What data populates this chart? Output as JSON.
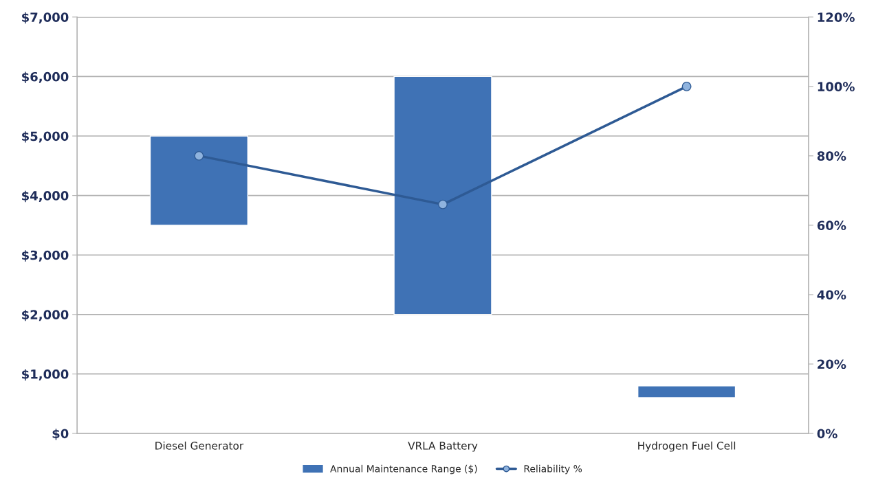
{
  "chart_data": {
    "type": "bar",
    "categories": [
      "Diesel Generator",
      "VRLA Battery",
      "Hydrogen Fuel Cell"
    ],
    "series": [
      {
        "name": "Annual Maintenance Range ($)",
        "color": "#3f72b5",
        "values": [
          1500,
          4000,
          200
        ],
        "base": [
          3500,
          2000,
          600
        ]
      },
      {
        "name": "Reliability %",
        "type": "line",
        "axis": "y2",
        "color": "#2e5a94",
        "marker": "circle",
        "values": [
          80,
          66,
          100
        ]
      }
    ],
    "ylim": [
      0,
      7000
    ],
    "yticks": [
      {
        "value": 0,
        "label": "$0"
      },
      {
        "value": 1000,
        "label": "$1,000"
      },
      {
        "value": 2000,
        "label": "$2,000"
      },
      {
        "value": 3000,
        "label": "$3,000"
      },
      {
        "value": 4000,
        "label": "$4,000"
      },
      {
        "value": 5000,
        "label": "$5,000"
      },
      {
        "value": 6000,
        "label": "$6,000"
      },
      {
        "value": 7000,
        "label": "$7,000"
      }
    ],
    "y2lim": [
      0,
      120
    ],
    "y2ticks": [
      {
        "value": 0,
        "label": "0%"
      },
      {
        "value": 20,
        "label": "20%"
      },
      {
        "value": 40,
        "label": "40%"
      },
      {
        "value": 60,
        "label": "60%"
      },
      {
        "value": 80,
        "label": "80%"
      },
      {
        "value": 100,
        "label": "100%"
      },
      {
        "value": 120,
        "label": "120%"
      }
    ],
    "grid": "y",
    "legend": "bottom"
  }
}
